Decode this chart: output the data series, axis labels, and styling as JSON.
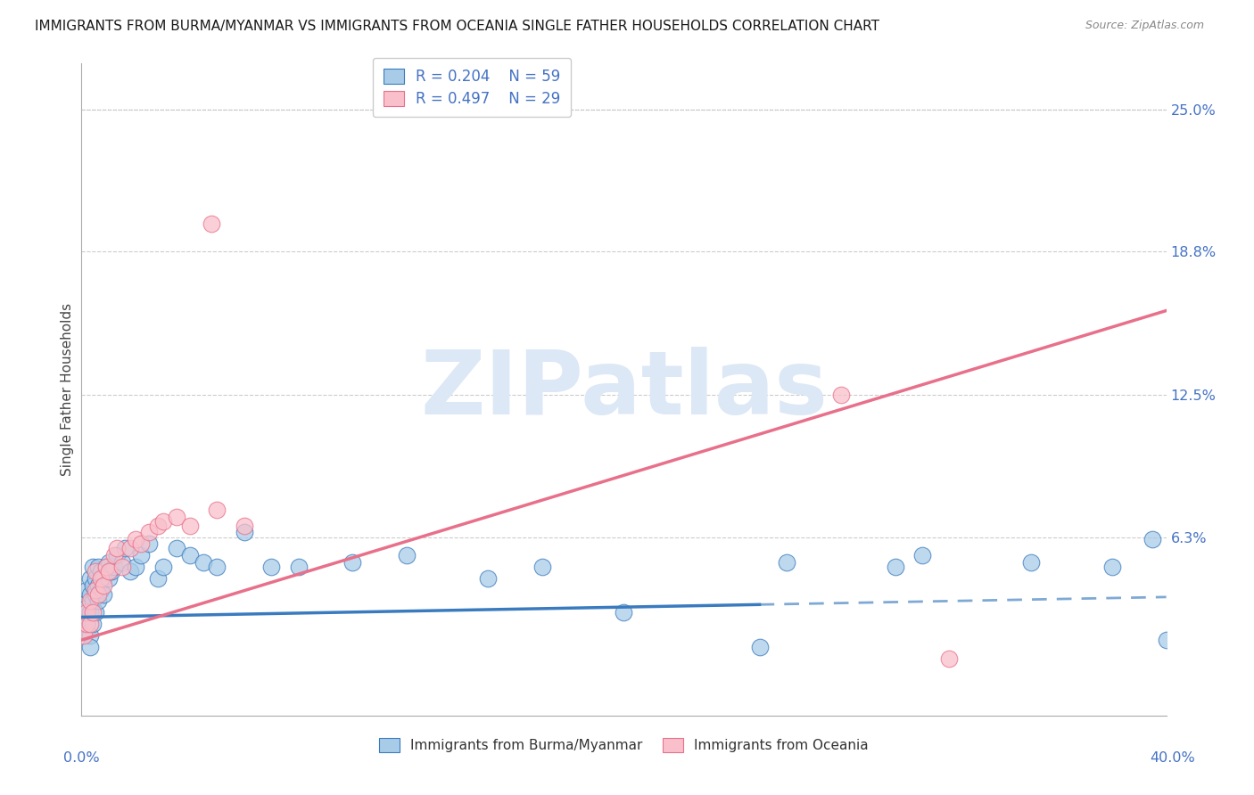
{
  "title": "IMMIGRANTS FROM BURMA/MYANMAR VS IMMIGRANTS FROM OCEANIA SINGLE FATHER HOUSEHOLDS CORRELATION CHART",
  "source": "Source: ZipAtlas.com",
  "ylabel": "Single Father Households",
  "color_blue": "#a8cce8",
  "color_pink": "#f9c0cb",
  "line_blue": "#3a7bbf",
  "line_pink": "#e8708a",
  "watermark_text": "ZIPatlas",
  "watermark_color": "#dce8f5",
  "y_ticks": [
    0.063,
    0.125,
    0.188,
    0.25
  ],
  "y_tick_labels": [
    "6.3%",
    "12.5%",
    "18.8%",
    "25.0%"
  ],
  "xlim": [
    0.0,
    0.4
  ],
  "ylim": [
    -0.015,
    0.27
  ],
  "blue_x": [
    0.001,
    0.001,
    0.002,
    0.002,
    0.002,
    0.002,
    0.003,
    0.003,
    0.003,
    0.003,
    0.003,
    0.004,
    0.004,
    0.004,
    0.004,
    0.005,
    0.005,
    0.005,
    0.006,
    0.006,
    0.006,
    0.007,
    0.007,
    0.008,
    0.008,
    0.009,
    0.01,
    0.01,
    0.011,
    0.012,
    0.013,
    0.015,
    0.016,
    0.018,
    0.02,
    0.022,
    0.025,
    0.028,
    0.03,
    0.035,
    0.04,
    0.045,
    0.05,
    0.06,
    0.07,
    0.08,
    0.1,
    0.12,
    0.15,
    0.17,
    0.2,
    0.25,
    0.26,
    0.3,
    0.31,
    0.35,
    0.38,
    0.395,
    0.4
  ],
  "blue_y": [
    0.03,
    0.025,
    0.035,
    0.028,
    0.032,
    0.04,
    0.03,
    0.038,
    0.045,
    0.02,
    0.015,
    0.025,
    0.035,
    0.042,
    0.05,
    0.03,
    0.038,
    0.045,
    0.035,
    0.042,
    0.05,
    0.04,
    0.048,
    0.038,
    0.045,
    0.05,
    0.045,
    0.052,
    0.048,
    0.05,
    0.055,
    0.052,
    0.058,
    0.048,
    0.05,
    0.055,
    0.06,
    0.045,
    0.05,
    0.058,
    0.055,
    0.052,
    0.05,
    0.065,
    0.05,
    0.05,
    0.052,
    0.055,
    0.045,
    0.05,
    0.03,
    0.015,
    0.052,
    0.05,
    0.055,
    0.052,
    0.05,
    0.062,
    0.018
  ],
  "pink_x": [
    0.001,
    0.002,
    0.002,
    0.003,
    0.003,
    0.004,
    0.005,
    0.005,
    0.006,
    0.007,
    0.008,
    0.009,
    0.01,
    0.012,
    0.013,
    0.015,
    0.018,
    0.02,
    0.022,
    0.025,
    0.028,
    0.03,
    0.035,
    0.04,
    0.048,
    0.05,
    0.06,
    0.28,
    0.32
  ],
  "pink_y": [
    0.02,
    0.025,
    0.03,
    0.025,
    0.035,
    0.03,
    0.04,
    0.048,
    0.038,
    0.045,
    0.042,
    0.05,
    0.048,
    0.055,
    0.058,
    0.05,
    0.058,
    0.062,
    0.06,
    0.065,
    0.068,
    0.07,
    0.072,
    0.068,
    0.2,
    0.075,
    0.068,
    0.125,
    0.01
  ],
  "blue_line_solid_end": 0.25,
  "blue_slope": 0.025,
  "blue_intercept": 0.03,
  "pink_slope": 0.38,
  "pink_intercept": 0.02
}
